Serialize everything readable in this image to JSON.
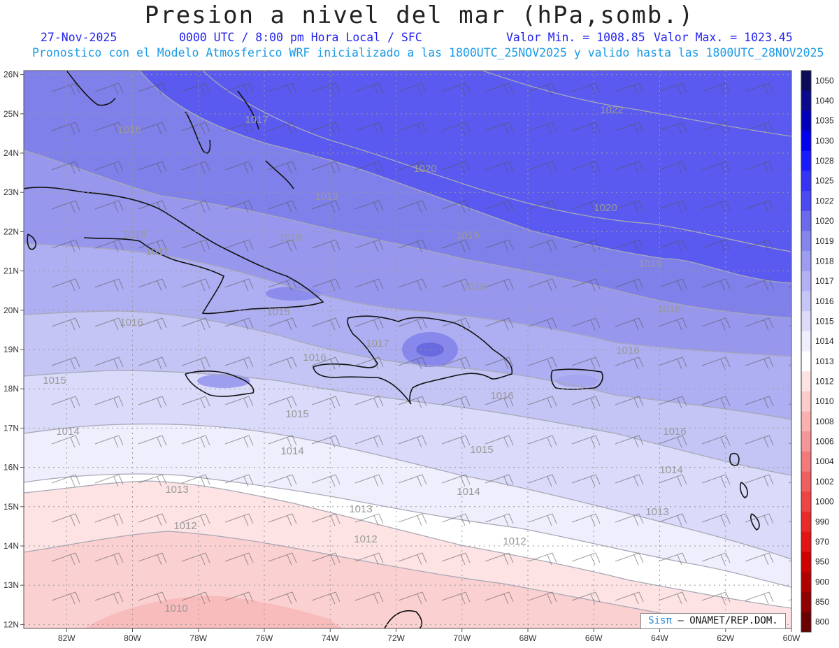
{
  "title": "Presion a nivel del mar (hPa,somb.)",
  "header": {
    "date": "27-Nov-2025",
    "time": "0000 UTC / 8:00 pm Hora Local / SFC",
    "vmin": "Valor Min. = 1008.85",
    "vmax": "Valor Max. = 1023.45",
    "model": "Pronostico con el Modelo Atmosferico WRF inicializado a las 1800UTC_25NOV2025 y valido hasta las  1800UTC_28NOV2025"
  },
  "map_extent": {
    "lon_min": -83.3,
    "lon_max": -60,
    "lat_min": 11.9,
    "lat_max": 26.1
  },
  "lon_ticks": [
    "82W",
    "80W",
    "78W",
    "76W",
    "74W",
    "72W",
    "70W",
    "68W",
    "66W",
    "64W",
    "62W",
    "60W"
  ],
  "lat_ticks": [
    "26N",
    "25N",
    "24N",
    "23N",
    "22N",
    "21N",
    "20N",
    "19N",
    "18N",
    "17N",
    "16N",
    "15N",
    "14N",
    "13N",
    "12N"
  ],
  "colorbar": {
    "levels": [
      "1050",
      "1040",
      "1035",
      "1030",
      "1028",
      "1025",
      "1022",
      "1020",
      "1019",
      "1018",
      "1017",
      "1016",
      "1015",
      "1014",
      "1013",
      "1012",
      "1010",
      "1008",
      "1006",
      "1004",
      "1002",
      "1000",
      "990",
      "970",
      "950",
      "900",
      "850",
      "800"
    ],
    "colors": [
      "#0b0b5a",
      "#0a0a8c",
      "#0000bb",
      "#0000ee",
      "#1a1aff",
      "#3434f5",
      "#4a4af0",
      "#6a6aec",
      "#8585ee",
      "#9c9cf0",
      "#b1b1f3",
      "#c6c6f6",
      "#dcdcfa",
      "#eeeefd",
      "#ffffff",
      "#fde4e4",
      "#fbcaca",
      "#f9b0b0",
      "#f69595",
      "#f37a7a",
      "#f05f5f",
      "#ed4444",
      "#ea2a2a",
      "#e21414",
      "#d00000",
      "#b00000",
      "#900000",
      "#6a0000"
    ]
  },
  "contour_labels": [
    "1022",
    "1020",
    "1020",
    "1019",
    "1019",
    "1019",
    "1018",
    "1018",
    "1018",
    "1018",
    "1018",
    "1017",
    "1017",
    "1017",
    "1016",
    "1016",
    "1016",
    "1016",
    "1016",
    "1015",
    "1015",
    "1015",
    "1015",
    "1014",
    "1014",
    "1014",
    "1014",
    "1013",
    "1013",
    "1013",
    "1012",
    "1012",
    "1012",
    "1010"
  ],
  "credit": {
    "brand": "Sisπ",
    "org": "– ONAMET/REP.DOM."
  }
}
